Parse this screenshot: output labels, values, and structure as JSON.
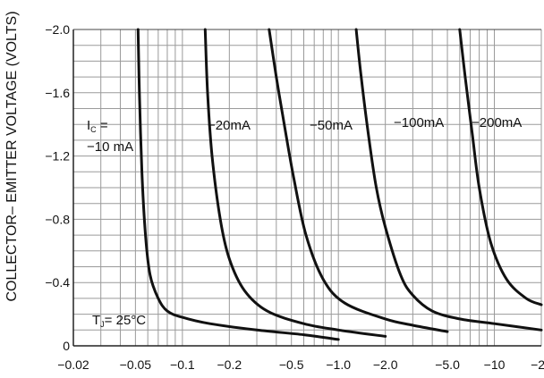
{
  "chart_data": {
    "type": "line",
    "ylabel": "COLLECTOR– EMITTER VOLTAGE (VOLTS)",
    "xlabel": "",
    "x_scale": "log",
    "xlim": [
      0.02,
      20
    ],
    "ylim": [
      0,
      -2.0
    ],
    "grid": true,
    "x_tick_labels": [
      "−0.02",
      "−0.05",
      "−0.1",
      "−0.2",
      "−0.5",
      "−1.0",
      "−2.0",
      "−5.0",
      "−10",
      "−20"
    ],
    "x_tick_values": [
      0.02,
      0.05,
      0.1,
      0.2,
      0.5,
      1.0,
      2.0,
      5.0,
      10,
      20
    ],
    "y_tick_labels": [
      "−2.0",
      "−1.6",
      "−1.2",
      "−0.8",
      "−0.4",
      "0"
    ],
    "y_tick_values": [
      -2.0,
      -1.6,
      -1.2,
      -0.8,
      -0.4,
      0
    ],
    "annotation": {
      "tj_main": "T",
      "tj_sub": "J",
      "tj_rest": "= 25°C"
    },
    "ic_label": {
      "main": "I",
      "sub": "C",
      "rest": " ="
    },
    "series": [
      {
        "name": "−10 mA",
        "x": [
          0.052,
          0.053,
          0.055,
          0.058,
          0.062,
          0.07,
          0.08,
          0.1,
          0.15,
          0.3,
          0.6,
          1.0
        ],
        "y": [
          -2.0,
          -1.6,
          -1.1,
          -0.7,
          -0.45,
          -0.3,
          -0.22,
          -0.18,
          -0.14,
          -0.1,
          -0.07,
          -0.04
        ]
      },
      {
        "name": "−20mA",
        "x": [
          0.14,
          0.145,
          0.155,
          0.175,
          0.2,
          0.25,
          0.35,
          0.6,
          1.0,
          2.0
        ],
        "y": [
          -2.0,
          -1.6,
          -1.2,
          -0.8,
          -0.55,
          -0.35,
          -0.22,
          -0.14,
          -0.1,
          -0.06
        ]
      },
      {
        "name": "−50mA",
        "x": [
          0.36,
          0.4,
          0.45,
          0.52,
          0.62,
          0.8,
          1.1,
          2.0,
          3.0,
          5.0
        ],
        "y": [
          -2.0,
          -1.7,
          -1.4,
          -1.05,
          -0.7,
          -0.42,
          -0.27,
          -0.17,
          -0.13,
          -0.09
        ]
      },
      {
        "name": "−100mA",
        "x": [
          1.3,
          1.4,
          1.55,
          1.75,
          2.0,
          2.5,
          3.0,
          4.0,
          6.0,
          10,
          20
        ],
        "y": [
          -2.0,
          -1.7,
          -1.35,
          -1.0,
          -0.75,
          -0.45,
          -0.32,
          -0.22,
          -0.17,
          -0.14,
          -0.1
        ]
      },
      {
        "name": "−200mA",
        "x": [
          6.0,
          6.5,
          7.2,
          8.0,
          9.5,
          12,
          16,
          20
        ],
        "y": [
          -2.0,
          -1.7,
          -1.35,
          -1.0,
          -0.65,
          -0.42,
          -0.3,
          -0.26
        ]
      }
    ]
  }
}
